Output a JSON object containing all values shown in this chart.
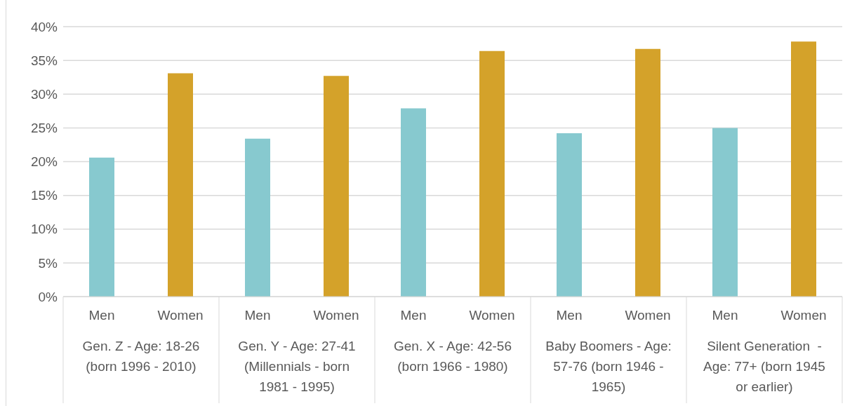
{
  "chart_data": {
    "type": "bar",
    "categories": [
      "Gen. Z - Age: 18-26 (born 1996 - 2010)",
      "Gen. Y - Age: 27-41 (Millennials - born 1981 - 1995)",
      "Gen. X - Age: 42-56 (born 1966 - 1980)",
      "Baby Boomers - Age: 57-76 (born 1946 - 1965)",
      "Silent Generation  - Age: 77+ (born 1945 or earlier)"
    ],
    "series": [
      {
        "name": "Men",
        "color": "#87c9cf",
        "values": [
          20.6,
          23.4,
          27.9,
          24.2,
          25.0
        ]
      },
      {
        "name": "Women",
        "color": "#d4a22a",
        "values": [
          33.1,
          32.7,
          36.4,
          36.7,
          37.8
        ]
      }
    ],
    "ylim": [
      0,
      40
    ],
    "yticks": [
      {
        "value": 0,
        "label": "0%"
      },
      {
        "value": 5,
        "label": "5%"
      },
      {
        "value": 10,
        "label": "10%"
      },
      {
        "value": 15,
        "label": "15%"
      },
      {
        "value": 20,
        "label": "20%"
      },
      {
        "value": 25,
        "label": "25%"
      },
      {
        "value": 30,
        "label": "30%"
      },
      {
        "value": 35,
        "label": "35%"
      },
      {
        "value": 40,
        "label": "40%"
      }
    ],
    "grid": "y",
    "legend": false
  }
}
